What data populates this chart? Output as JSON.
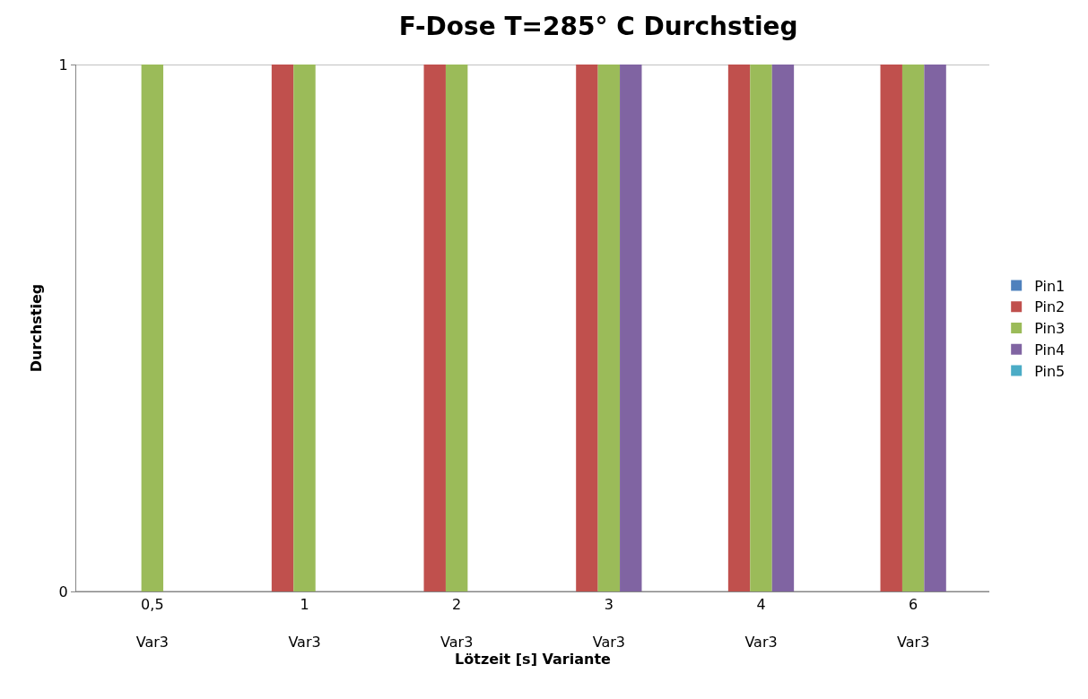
{
  "chart_data": {
    "type": "bar",
    "title": "F-Dose T=285° C Durchstieg",
    "xlabel": "Lötzeit [s] Variante",
    "ylabel": "Durchstieg",
    "categories": [
      "0,5\nVar3",
      "1\nVar3",
      "2\nVar3",
      "3\nVar3",
      "4\nVar3",
      "6\nVar3"
    ],
    "series": [
      {
        "name": "Pin1",
        "color": "#4f81bd",
        "values": [
          0,
          0,
          0,
          0,
          0,
          0
        ]
      },
      {
        "name": "Pin2",
        "color": "#c0504d",
        "values": [
          0,
          1,
          1,
          1,
          1,
          1
        ]
      },
      {
        "name": "Pin3",
        "color": "#9bbb59",
        "values": [
          1,
          1,
          1,
          1,
          1,
          1
        ]
      },
      {
        "name": "Pin4",
        "color": "#8064a2",
        "values": [
          0,
          0,
          0,
          1,
          1,
          1
        ]
      },
      {
        "name": "Pin5",
        "color": "#4bacc6",
        "values": [
          0,
          0,
          0,
          0,
          0,
          0
        ]
      }
    ],
    "ylim": [
      0,
      1
    ],
    "yticks": [
      0,
      1
    ],
    "grid": "y",
    "legend": "right"
  }
}
